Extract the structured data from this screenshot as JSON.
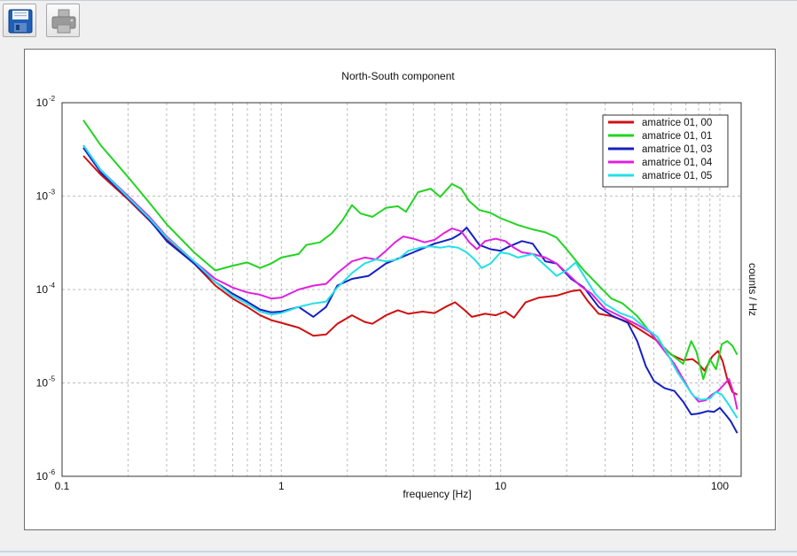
{
  "toolbar": {
    "buttons": [
      {
        "name": "save",
        "icon": "floppy-disk-icon"
      },
      {
        "name": "print",
        "icon": "printer-icon"
      }
    ]
  },
  "chart_data": {
    "type": "line",
    "title": "North-South component",
    "xlabel": "frequency [Hz]",
    "ylabel": "counts  /  Hz",
    "x_scale": "log",
    "y_scale": "log",
    "xlim": [
      0.1,
      125
    ],
    "ylim": [
      1e-06,
      0.01
    ],
    "grid": true,
    "legend_position": "top-right",
    "x_ticks": [
      {
        "value": 0.1,
        "label": "0.1"
      },
      {
        "value": 1,
        "label": "1"
      },
      {
        "value": 10,
        "label": "10"
      },
      {
        "value": 100,
        "label": "100"
      }
    ],
    "y_ticks": [
      {
        "value": 0.01,
        "base": "10",
        "exp": "-2"
      },
      {
        "value": 0.001,
        "base": "10",
        "exp": "-3"
      },
      {
        "value": 0.0001,
        "base": "10",
        "exp": "-4"
      },
      {
        "value": 1e-05,
        "base": "10",
        "exp": "-5"
      },
      {
        "value": 1e-06,
        "base": "10",
        "exp": "-6"
      }
    ],
    "series": [
      {
        "name": "amatrice 01, 00",
        "color": "#d01010",
        "points": [
          [
            0.125,
            0.0027
          ],
          [
            0.15,
            0.0017
          ],
          [
            0.2,
            0.00092
          ],
          [
            0.25,
            0.00055
          ],
          [
            0.3,
            0.00035
          ],
          [
            0.4,
            0.00019
          ],
          [
            0.5,
            0.00011
          ],
          [
            0.6,
            8e-05
          ],
          [
            0.7,
            6.5e-05
          ],
          [
            0.8,
            5.3e-05
          ],
          [
            0.9,
            4.7e-05
          ],
          [
            1.0,
            4.4e-05
          ],
          [
            1.2,
            3.9e-05
          ],
          [
            1.4,
            3.2e-05
          ],
          [
            1.6,
            3.3e-05
          ],
          [
            1.8,
            4.3e-05
          ],
          [
            2.1,
            5.3e-05
          ],
          [
            2.4,
            4.5e-05
          ],
          [
            2.6,
            4.3e-05
          ],
          [
            3.0,
            5.3e-05
          ],
          [
            3.4,
            6e-05
          ],
          [
            3.8,
            5.5e-05
          ],
          [
            4.4,
            5.8e-05
          ],
          [
            5.0,
            5.6e-05
          ],
          [
            5.6,
            6.5e-05
          ],
          [
            6.2,
            7.3e-05
          ],
          [
            6.8,
            6.1e-05
          ],
          [
            7.4,
            5.1e-05
          ],
          [
            8.5,
            5.5e-05
          ],
          [
            9.5,
            5.3e-05
          ],
          [
            10.5,
            5.8e-05
          ],
          [
            11.5,
            5e-05
          ],
          [
            13.0,
            7.3e-05
          ],
          [
            15.0,
            8.2e-05
          ],
          [
            18.0,
            8.6e-05
          ],
          [
            21.0,
            9.6e-05
          ],
          [
            23.0,
            9.9e-05
          ],
          [
            25.0,
            7.5e-05
          ],
          [
            28.0,
            5.5e-05
          ],
          [
            32.0,
            5.2e-05
          ],
          [
            38.0,
            4.5e-05
          ],
          [
            45.0,
            3.5e-05
          ],
          [
            52.0,
            2.8e-05
          ],
          [
            60.0,
            2e-05
          ],
          [
            68.0,
            1.75e-05
          ],
          [
            75.0,
            1.8e-05
          ],
          [
            80.0,
            1.6e-05
          ],
          [
            85.0,
            1.35e-05
          ],
          [
            92.0,
            1.9e-05
          ],
          [
            98.0,
            2.2e-05
          ],
          [
            103.0,
            1.7e-05
          ],
          [
            108.0,
            1.1e-05
          ],
          [
            114.0,
            8e-06
          ],
          [
            120.0,
            7.5e-06
          ]
        ]
      },
      {
        "name": "amatrice 01, 01",
        "color": "#22d422",
        "points": [
          [
            0.125,
            0.0065
          ],
          [
            0.15,
            0.0035
          ],
          [
            0.2,
            0.0016
          ],
          [
            0.25,
            0.00085
          ],
          [
            0.3,
            0.0005
          ],
          [
            0.4,
            0.00025
          ],
          [
            0.5,
            0.00016
          ],
          [
            0.6,
            0.00018
          ],
          [
            0.7,
            0.000195
          ],
          [
            0.8,
            0.00017
          ],
          [
            0.9,
            0.00019
          ],
          [
            1.0,
            0.00022
          ],
          [
            1.2,
            0.00024
          ],
          [
            1.3,
            0.0003
          ],
          [
            1.5,
            0.00032
          ],
          [
            1.7,
            0.0004
          ],
          [
            1.9,
            0.00055
          ],
          [
            2.1,
            0.0008
          ],
          [
            2.3,
            0.00065
          ],
          [
            2.6,
            0.0006
          ],
          [
            3.0,
            0.00075
          ],
          [
            3.4,
            0.00078
          ],
          [
            3.7,
            0.00068
          ],
          [
            4.2,
            0.0011
          ],
          [
            4.8,
            0.0012
          ],
          [
            5.3,
            0.00098
          ],
          [
            6.0,
            0.00135
          ],
          [
            6.6,
            0.0012
          ],
          [
            7.2,
            0.00088
          ],
          [
            8.0,
            0.00071
          ],
          [
            9.0,
            0.00066
          ],
          [
            10.0,
            0.00058
          ],
          [
            12.0,
            0.00049
          ],
          [
            14.0,
            0.00044
          ],
          [
            16.0,
            0.00041
          ],
          [
            18.0,
            0.00036
          ],
          [
            20.0,
            0.00027
          ],
          [
            24.0,
            0.00016
          ],
          [
            28.0,
            0.00011
          ],
          [
            32.0,
            8e-05
          ],
          [
            36.0,
            7.1e-05
          ],
          [
            42.0,
            5.2e-05
          ],
          [
            48.0,
            3.5e-05
          ],
          [
            55.0,
            2.4e-05
          ],
          [
            62.0,
            1.9e-05
          ],
          [
            68.0,
            1.6e-05
          ],
          [
            74.0,
            2.8e-05
          ],
          [
            78.0,
            2.2e-05
          ],
          [
            84.0,
            1.1e-05
          ],
          [
            90.0,
            1.8e-05
          ],
          [
            96.0,
            1.4e-05
          ],
          [
            102.0,
            2.6e-05
          ],
          [
            108.0,
            2.8e-05
          ],
          [
            114.0,
            2.5e-05
          ],
          [
            120.0,
            2e-05
          ]
        ]
      },
      {
        "name": "amatrice 01, 03",
        "color": "#1520c0",
        "points": [
          [
            0.125,
            0.0033
          ],
          [
            0.15,
            0.0018
          ],
          [
            0.2,
            0.00095
          ],
          [
            0.25,
            0.00056
          ],
          [
            0.3,
            0.00033
          ],
          [
            0.4,
            0.00019
          ],
          [
            0.5,
            0.00012
          ],
          [
            0.6,
            9e-05
          ],
          [
            0.7,
            7.4e-05
          ],
          [
            0.8,
            6.1e-05
          ],
          [
            0.9,
            5.7e-05
          ],
          [
            1.0,
            5.8e-05
          ],
          [
            1.2,
            6.5e-05
          ],
          [
            1.4,
            5.1e-05
          ],
          [
            1.6,
            6.5e-05
          ],
          [
            1.8,
            0.00011
          ],
          [
            2.1,
            0.00013
          ],
          [
            2.5,
            0.00014
          ],
          [
            3.0,
            0.00019
          ],
          [
            3.5,
            0.00022
          ],
          [
            4.0,
            0.00025
          ],
          [
            4.5,
            0.00028
          ],
          [
            5.0,
            0.00031
          ],
          [
            5.5,
            0.00033
          ],
          [
            6.0,
            0.00035
          ],
          [
            6.5,
            0.00039
          ],
          [
            7.0,
            0.00046
          ],
          [
            7.5,
            0.00037
          ],
          [
            8.0,
            0.0003
          ],
          [
            9.0,
            0.00027
          ],
          [
            10.0,
            0.00026
          ],
          [
            11.0,
            0.00029
          ],
          [
            12.5,
            0.00033
          ],
          [
            14.0,
            0.00031
          ],
          [
            16.0,
            0.0002
          ],
          [
            18.0,
            0.00019
          ],
          [
            21.0,
            0.00013
          ],
          [
            24.0,
            0.000105
          ],
          [
            28.0,
            6.5e-05
          ],
          [
            32.0,
            5.3e-05
          ],
          [
            38.0,
            4.4e-05
          ],
          [
            42.0,
            2.8e-05
          ],
          [
            46.0,
            1.5e-05
          ],
          [
            50.0,
            1.05e-05
          ],
          [
            56.0,
            8.8e-06
          ],
          [
            62.0,
            8.2e-06
          ],
          [
            68.0,
            6.3e-06
          ],
          [
            74.0,
            4.6e-06
          ],
          [
            80.0,
            4.7e-06
          ],
          [
            88.0,
            5e-06
          ],
          [
            94.0,
            4.9e-06
          ],
          [
            100.0,
            5.4e-06
          ],
          [
            106.0,
            4.6e-06
          ],
          [
            112.0,
            3.9e-06
          ],
          [
            120.0,
            2.9e-06
          ]
        ]
      },
      {
        "name": "amatrice 01, 04",
        "color": "#e020e0",
        "points": [
          [
            0.125,
            0.0035
          ],
          [
            0.15,
            0.0019
          ],
          [
            0.2,
            0.001
          ],
          [
            0.25,
            0.0006
          ],
          [
            0.3,
            0.00037
          ],
          [
            0.4,
            0.0002
          ],
          [
            0.5,
            0.00013
          ],
          [
            0.6,
            0.000105
          ],
          [
            0.7,
            9.3e-05
          ],
          [
            0.8,
            8.8e-05
          ],
          [
            0.9,
            8e-05
          ],
          [
            1.0,
            8.2e-05
          ],
          [
            1.2,
            0.0001
          ],
          [
            1.4,
            0.00011
          ],
          [
            1.6,
            0.000115
          ],
          [
            1.8,
            0.00015
          ],
          [
            2.1,
            0.0002
          ],
          [
            2.4,
            0.00022
          ],
          [
            2.7,
            0.00021
          ],
          [
            3.0,
            0.00026
          ],
          [
            3.3,
            0.00032
          ],
          [
            3.6,
            0.00037
          ],
          [
            4.0,
            0.00035
          ],
          [
            4.5,
            0.00032
          ],
          [
            5.0,
            0.00034
          ],
          [
            5.5,
            0.0004
          ],
          [
            6.0,
            0.00045
          ],
          [
            6.6,
            0.00042
          ],
          [
            7.2,
            0.00032
          ],
          [
            7.8,
            0.00027
          ],
          [
            8.5,
            0.00033
          ],
          [
            9.5,
            0.00035
          ],
          [
            10.5,
            0.00033
          ],
          [
            11.5,
            0.00028
          ],
          [
            12.5,
            0.00025
          ],
          [
            14.0,
            0.00024
          ],
          [
            16.0,
            0.00022
          ],
          [
            18.0,
            0.00019
          ],
          [
            21.0,
            0.000135
          ],
          [
            23.0,
            0.00011
          ],
          [
            26.0,
            9e-05
          ],
          [
            30.0,
            6.2e-05
          ],
          [
            35.0,
            5.2e-05
          ],
          [
            42.0,
            4.2e-05
          ],
          [
            48.0,
            3.5e-05
          ],
          [
            55.0,
            2.3e-05
          ],
          [
            62.0,
            1.6e-05
          ],
          [
            68.0,
            1.1e-05
          ],
          [
            74.0,
            7.8e-06
          ],
          [
            80.0,
            6.3e-06
          ],
          [
            86.0,
            6.5e-06
          ],
          [
            92.0,
            7.5e-06
          ],
          [
            98.0,
            8.2e-06
          ],
          [
            104.0,
            9.5e-06
          ],
          [
            110.0,
            1.1e-05
          ],
          [
            116.0,
            7.5e-06
          ],
          [
            120.0,
            5.2e-06
          ]
        ]
      },
      {
        "name": "amatrice 01, 05",
        "color": "#22e0e8",
        "points": [
          [
            0.125,
            0.0035
          ],
          [
            0.15,
            0.0019
          ],
          [
            0.2,
            0.00097
          ],
          [
            0.25,
            0.00058
          ],
          [
            0.3,
            0.00036
          ],
          [
            0.4,
            0.0002
          ],
          [
            0.5,
            0.00012
          ],
          [
            0.6,
            8.5e-05
          ],
          [
            0.7,
            7e-05
          ],
          [
            0.8,
            5.8e-05
          ],
          [
            0.9,
            5.4e-05
          ],
          [
            1.0,
            5.6e-05
          ],
          [
            1.2,
            6.5e-05
          ],
          [
            1.4,
            7.1e-05
          ],
          [
            1.6,
            7.4e-05
          ],
          [
            1.8,
            0.000105
          ],
          [
            2.1,
            0.00015
          ],
          [
            2.4,
            0.00019
          ],
          [
            2.7,
            0.00021
          ],
          [
            3.0,
            0.0002
          ],
          [
            3.4,
            0.00021
          ],
          [
            3.8,
            0.00026
          ],
          [
            4.3,
            0.00028
          ],
          [
            4.8,
            0.00029
          ],
          [
            5.3,
            0.00028
          ],
          [
            5.8,
            0.00029
          ],
          [
            6.4,
            0.00028
          ],
          [
            7.0,
            0.00025
          ],
          [
            7.6,
            0.00021
          ],
          [
            8.2,
            0.00017
          ],
          [
            9.0,
            0.00019
          ],
          [
            10.0,
            0.00025
          ],
          [
            11.0,
            0.00024
          ],
          [
            12.0,
            0.00022
          ],
          [
            14.0,
            0.00024
          ],
          [
            16.0,
            0.00018
          ],
          [
            18.0,
            0.00014
          ],
          [
            20.0,
            0.00016
          ],
          [
            22.0,
            0.000195
          ],
          [
            24.0,
            0.00014
          ],
          [
            27.0,
            9e-05
          ],
          [
            30.0,
            7e-05
          ],
          [
            35.0,
            5.6e-05
          ],
          [
            40.0,
            5e-05
          ],
          [
            45.0,
            4e-05
          ],
          [
            52.0,
            3.1e-05
          ],
          [
            58.0,
            2e-05
          ],
          [
            64.0,
            1.3e-05
          ],
          [
            70.0,
            9.5e-06
          ],
          [
            76.0,
            7.2e-06
          ],
          [
            82.0,
            6.6e-06
          ],
          [
            90.0,
            6.8e-06
          ],
          [
            96.0,
            8e-06
          ],
          [
            102.0,
            7.5e-06
          ],
          [
            110.0,
            5.8e-06
          ],
          [
            120.0,
            4.2e-06
          ]
        ]
      }
    ]
  }
}
